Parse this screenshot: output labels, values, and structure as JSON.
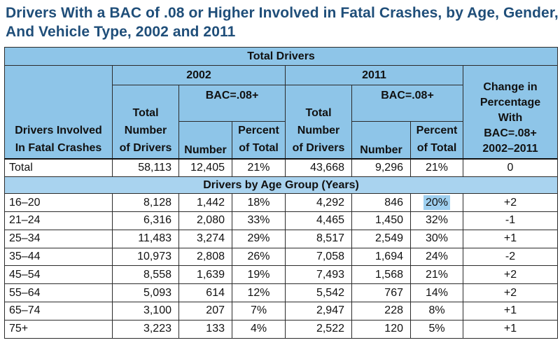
{
  "title_line1": "Drivers With a BAC of .08 or Higher Involved in Fatal Crashes, by Age, Gender,",
  "title_line2": "And Vehicle Type, 2002 and 2011",
  "table": {
    "total_drivers": "Total Drivers",
    "year_2002": "2002",
    "year_2011": "2011",
    "change_header": [
      "Change in",
      "Percentage",
      "With",
      "BAC=.08+",
      "2002–2011"
    ],
    "row_label_header": [
      "Drivers Involved",
      "In Fatal Crashes"
    ],
    "total_number_header": [
      "Total",
      "Number",
      "of Drivers"
    ],
    "bac_header": "BAC=.08+",
    "number_header": "Number",
    "percent_header": [
      "Percent",
      "of Total"
    ],
    "age_section": "Drivers by Age Group (Years)",
    "total_row": [
      "Total",
      "58,113",
      "12,405",
      "21%",
      "43,668",
      "9,296",
      "21%",
      "0"
    ],
    "rows": [
      [
        "16–20",
        "8,128",
        "1,442",
        "18%",
        "4,292",
        "846",
        "20%",
        "+2"
      ],
      [
        "21–24",
        "6,316",
        "2,080",
        "33%",
        "4,465",
        "1,450",
        "32%",
        "-1"
      ],
      [
        "25–34",
        "11,483",
        "3,274",
        "29%",
        "8,517",
        "2,549",
        "30%",
        "+1"
      ],
      [
        "35–44",
        "10,973",
        "2,808",
        "26%",
        "7,058",
        "1,694",
        "24%",
        "-2"
      ],
      [
        "45–54",
        "8,558",
        "1,639",
        "19%",
        "7,493",
        "1,568",
        "21%",
        "+2"
      ],
      [
        "55–64",
        "5,093",
        "614",
        "12%",
        "5,542",
        "767",
        "14%",
        "+2"
      ],
      [
        "65–74",
        "3,100",
        "207",
        "7%",
        "2,947",
        "228",
        "8%",
        "+1"
      ],
      [
        "75+",
        "3,223",
        "133",
        "4%",
        "2,522",
        "120",
        "5%",
        "+1"
      ]
    ]
  }
}
